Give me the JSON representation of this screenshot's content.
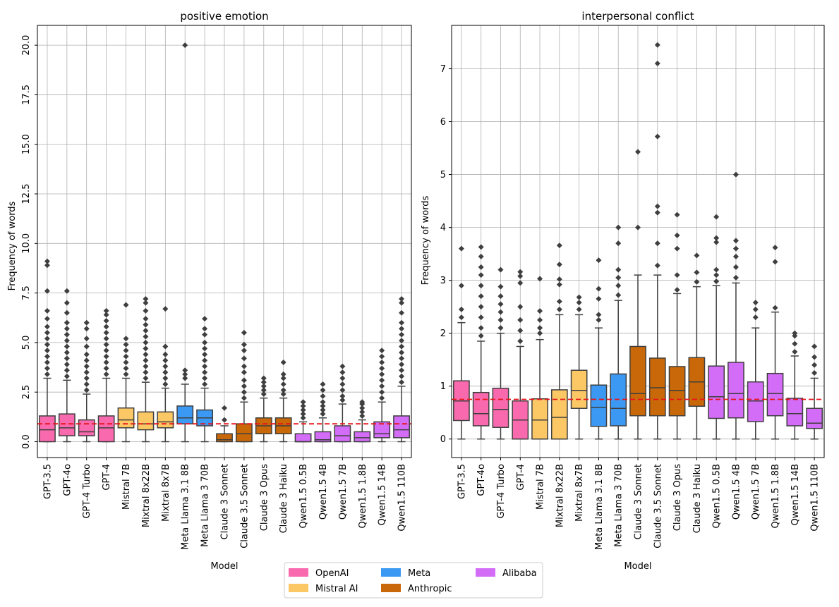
{
  "legend": {
    "items": [
      {
        "label": "OpenAI",
        "color": "#f86aad"
      },
      {
        "label": "Mistral AI",
        "color": "#fcc866"
      },
      {
        "label": "Meta",
        "color": "#3b99f3"
      },
      {
        "label": "Anthropic",
        "color": "#c86808"
      },
      {
        "label": "Alibaba",
        "color": "#d36cf6"
      }
    ]
  },
  "chart_data": [
    {
      "type": "box",
      "title": "positive emotion",
      "xlabel": "Model",
      "ylabel": "Frequency of words",
      "ylim": [
        -0.8,
        21.0
      ],
      "yticks": [
        0.0,
        2.5,
        5.0,
        7.5,
        10.0,
        12.5,
        15.0,
        17.5,
        20.0
      ],
      "ytick_labels": [
        "0.0",
        "2.5",
        "5.0",
        "7.5",
        "10.0",
        "12.5",
        "15.0",
        "17.5",
        "20.0"
      ],
      "grid": true,
      "reference_line": 0.9,
      "categories": [
        "GPT-3.5",
        "GPT-4o",
        "GPT-4 Turbo",
        "GPT-4",
        "Mistral 7B",
        "Mixtral 8x22B",
        "Mixtral 8x7B",
        "Meta Llama 3.1 8B",
        "Meta Llama 3 70B",
        "Claude 3 Sonnet",
        "Claude 3.5 Sonnet",
        "Claude 3 Opus",
        "Claude 3 Haiku",
        "Qwen1.5 0.5B",
        "Qwen1.5 4B",
        "Qwen1.5 7B",
        "Qwen1.5 1.8B",
        "Qwen1.5 14B",
        "Qwen1.5 110B"
      ],
      "providers": [
        "OpenAI",
        "OpenAI",
        "OpenAI",
        "OpenAI",
        "Mistral AI",
        "Mistral AI",
        "Mistral AI",
        "Meta",
        "Meta",
        "Anthropic",
        "Anthropic",
        "Anthropic",
        "Anthropic",
        "Alibaba",
        "Alibaba",
        "Alibaba",
        "Alibaba",
        "Alibaba",
        "Alibaba"
      ],
      "boxes": [
        {
          "low": 0,
          "q1": 0.0,
          "median": 0.6,
          "q3": 1.3,
          "high": 3.2,
          "outliers": [
            3.4,
            3.7,
            4.0,
            4.3,
            4.6,
            4.9,
            5.2,
            5.5,
            5.8,
            6.2,
            6.6,
            7.6,
            8.9,
            9.1
          ]
        },
        {
          "low": 0,
          "q1": 0.3,
          "median": 0.7,
          "q3": 1.4,
          "high": 3.1,
          "outliers": [
            3.3,
            3.6,
            3.9,
            4.2,
            4.5,
            4.8,
            5.1,
            5.4,
            5.7,
            6.0,
            6.5,
            7.0,
            7.6
          ]
        },
        {
          "low": 0,
          "q1": 0.3,
          "median": 0.5,
          "q3": 1.1,
          "high": 2.4,
          "outliers": [
            2.6,
            2.9,
            3.2,
            3.5,
            3.8,
            4.1,
            4.4,
            4.8,
            5.2,
            5.7,
            6.0
          ]
        },
        {
          "low": 0,
          "q1": 0.0,
          "median": 0.7,
          "q3": 1.3,
          "high": 3.2,
          "outliers": [
            3.4,
            3.7,
            4.0,
            4.3,
            4.6,
            4.9,
            5.2,
            5.5,
            5.8,
            6.1,
            6.4,
            6.6
          ]
        },
        {
          "low": 0,
          "q1": 0.7,
          "median": 1.1,
          "q3": 1.7,
          "high": 3.2,
          "outliers": [
            3.4,
            3.7,
            4.0,
            4.3,
            4.6,
            4.9,
            5.2,
            6.9
          ]
        },
        {
          "low": 0,
          "q1": 0.6,
          "median": 0.9,
          "q3": 1.5,
          "high": 3.0,
          "outliers": [
            3.2,
            3.5,
            3.8,
            4.1,
            4.4,
            4.7,
            5.0,
            5.3,
            5.6,
            5.9,
            6.2,
            6.6,
            7.0,
            7.2
          ]
        },
        {
          "low": 0,
          "q1": 0.7,
          "median": 1.0,
          "q3": 1.5,
          "high": 2.7,
          "outliers": [
            2.9,
            3.2,
            3.5,
            3.8,
            4.1,
            4.4,
            4.8,
            6.7
          ]
        },
        {
          "low": 0,
          "q1": 0.9,
          "median": 1.2,
          "q3": 1.8,
          "high": 2.9,
          "outliers": [
            3.2,
            3.4,
            3.6,
            20.0
          ]
        },
        {
          "low": 0,
          "q1": 0.8,
          "median": 1.2,
          "q3": 1.6,
          "high": 2.7,
          "outliers": [
            2.9,
            3.2,
            3.5,
            3.8,
            4.1,
            4.4,
            4.7,
            5.0,
            5.4,
            5.7,
            6.2
          ]
        },
        {
          "low": 0,
          "q1": 0.0,
          "median": 0.1,
          "q3": 0.4,
          "high": 0.8,
          "outliers": [
            1.1,
            1.7
          ]
        },
        {
          "low": 0,
          "q1": 0.0,
          "median": 0.4,
          "q3": 0.9,
          "high": 2.0,
          "outliers": [
            2.2,
            2.5,
            2.8,
            3.1,
            3.5,
            3.8,
            4.2,
            4.6,
            4.9,
            5.5
          ]
        },
        {
          "low": 0,
          "q1": 0.4,
          "median": 0.8,
          "q3": 1.2,
          "high": 2.2,
          "outliers": [
            2.4,
            2.6,
            2.8,
            3.0,
            3.2
          ]
        },
        {
          "low": 0,
          "q1": 0.4,
          "median": 0.8,
          "q3": 1.2,
          "high": 2.2,
          "outliers": [
            2.4,
            2.6,
            2.9,
            3.2,
            3.4,
            4.0
          ]
        },
        {
          "low": 0,
          "q1": 0.0,
          "median": 0.0,
          "q3": 0.4,
          "high": 1.0,
          "outliers": [
            1.2,
            1.4,
            1.6,
            1.8,
            2.0
          ]
        },
        {
          "low": 0,
          "q1": 0.0,
          "median": 0.1,
          "q3": 0.5,
          "high": 1.2,
          "outliers": [
            1.4,
            1.6,
            1.8,
            2.0,
            2.3,
            2.6,
            2.9
          ]
        },
        {
          "low": 0,
          "q1": 0.0,
          "median": 0.3,
          "q3": 0.8,
          "high": 1.9,
          "outliers": [
            2.1,
            2.3,
            2.6,
            2.9,
            3.2,
            3.5,
            3.8
          ]
        },
        {
          "low": 0,
          "q1": 0.0,
          "median": 0.2,
          "q3": 0.5,
          "high": 1.1,
          "outliers": [
            1.3,
            1.5,
            1.7,
            1.9,
            2.0
          ]
        },
        {
          "low": 0,
          "q1": 0.2,
          "median": 0.4,
          "q3": 1.0,
          "high": 2.0,
          "outliers": [
            2.2,
            2.5,
            2.8,
            3.1,
            3.4,
            3.7,
            4.0,
            4.3,
            4.6
          ]
        },
        {
          "low": 0,
          "q1": 0.2,
          "median": 0.6,
          "q3": 1.3,
          "high": 2.8,
          "outliers": [
            3.0,
            3.3,
            3.6,
            3.9,
            4.2,
            4.5,
            4.8,
            5.1,
            5.4,
            5.7,
            6.0,
            6.5,
            7.0,
            7.2
          ]
        }
      ]
    },
    {
      "type": "box",
      "title": "interpersonal conflict",
      "xlabel": "Model",
      "ylabel": "Frequency of words",
      "ylim": [
        -0.35,
        7.82
      ],
      "yticks": [
        0,
        1,
        2,
        3,
        4,
        5,
        6,
        7
      ],
      "ytick_labels": [
        "0",
        "1",
        "2",
        "3",
        "4",
        "5",
        "6",
        "7"
      ],
      "grid": true,
      "reference_line": 0.75,
      "categories": [
        "GPT-3.5",
        "GPT-4o",
        "GPT-4 Turbo",
        "GPT-4",
        "Mistral 7B",
        "Mixtral 8x22B",
        "Mixtral 8x7B",
        "Meta Llama 3.1 8B",
        "Meta Llama 3 70B",
        "Claude 3 Sonnet",
        "Claude 3.5 Sonnet",
        "Claude 3 Opus",
        "Claude 3 Haiku",
        "Qwen1.5 0.5B",
        "Qwen1.5 4B",
        "Qwen1.5 7B",
        "Qwen1.5 1.8B",
        "Qwen1.5 14B",
        "Qwen1.5 110B"
      ],
      "providers": [
        "OpenAI",
        "OpenAI",
        "OpenAI",
        "OpenAI",
        "Mistral AI",
        "Mistral AI",
        "Mistral AI",
        "Meta",
        "Meta",
        "Anthropic",
        "Anthropic",
        "Anthropic",
        "Anthropic",
        "Alibaba",
        "Alibaba",
        "Alibaba",
        "Alibaba",
        "Alibaba",
        "Alibaba"
      ],
      "boxes": [
        {
          "low": 0,
          "q1": 0.35,
          "median": 0.72,
          "q3": 1.1,
          "high": 2.2,
          "outliers": [
            2.3,
            2.45,
            2.9,
            3.6
          ]
        },
        {
          "low": 0,
          "q1": 0.25,
          "median": 0.48,
          "q3": 0.88,
          "high": 1.85,
          "outliers": [
            1.95,
            2.1,
            2.3,
            2.5,
            2.7,
            2.9,
            3.1,
            3.25,
            3.45,
            3.63
          ]
        },
        {
          "low": 0,
          "q1": 0.22,
          "median": 0.56,
          "q3": 0.96,
          "high": 2.0,
          "outliers": [
            2.1,
            2.25,
            2.4,
            2.55,
            2.7,
            2.88,
            3.2
          ]
        },
        {
          "low": 0,
          "q1": 0.0,
          "median": 0.36,
          "q3": 0.72,
          "high": 1.75,
          "outliers": [
            1.85,
            2.05,
            2.25,
            2.5,
            2.95,
            3.08,
            3.16
          ]
        },
        {
          "low": 0,
          "q1": 0.0,
          "median": 0.36,
          "q3": 0.76,
          "high": 1.88,
          "outliers": [
            2.0,
            2.1,
            2.25,
            2.42,
            3.03
          ]
        },
        {
          "low": 0,
          "q1": 0.0,
          "median": 0.41,
          "q3": 0.93,
          "high": 2.35,
          "outliers": [
            2.45,
            2.6,
            2.92,
            3.02,
            3.3,
            3.66
          ]
        },
        {
          "low": 0,
          "q1": 0.58,
          "median": 0.92,
          "q3": 1.3,
          "high": 2.35,
          "outliers": [
            2.45,
            2.58,
            2.68
          ]
        },
        {
          "low": 0,
          "q1": 0.24,
          "median": 0.6,
          "q3": 1.02,
          "high": 2.1,
          "outliers": [
            2.25,
            2.35,
            2.65,
            2.84,
            3.38
          ]
        },
        {
          "low": 0,
          "q1": 0.25,
          "median": 0.58,
          "q3": 1.23,
          "high": 2.62,
          "outliers": [
            2.72,
            2.9,
            3.05,
            3.2,
            3.7,
            4.0
          ]
        },
        {
          "low": 0,
          "q1": 0.44,
          "median": 0.86,
          "q3": 1.75,
          "high": 3.1,
          "outliers": [
            4.0,
            5.43
          ]
        },
        {
          "low": 0,
          "q1": 0.44,
          "median": 0.97,
          "q3": 1.53,
          "high": 3.1,
          "outliers": [
            3.28,
            3.7,
            4.28,
            4.4,
            5.72,
            7.1,
            7.45
          ]
        },
        {
          "low": 0,
          "q1": 0.44,
          "median": 0.92,
          "q3": 1.37,
          "high": 2.75,
          "outliers": [
            2.82,
            3.1,
            3.6,
            3.85,
            4.24
          ]
        },
        {
          "low": 0,
          "q1": 0.62,
          "median": 1.08,
          "q3": 1.54,
          "high": 2.88,
          "outliers": [
            2.97,
            3.15,
            3.47
          ]
        },
        {
          "low": 0,
          "q1": 0.39,
          "median": 0.8,
          "q3": 1.38,
          "high": 2.9,
          "outliers": [
            2.98,
            3.1,
            3.2,
            3.72,
            3.8,
            4.2
          ]
        },
        {
          "low": 0,
          "q1": 0.4,
          "median": 0.86,
          "q3": 1.45,
          "high": 2.95,
          "outliers": [
            3.05,
            3.25,
            3.45,
            3.6,
            3.75,
            5.0
          ]
        },
        {
          "low": 0,
          "q1": 0.33,
          "median": 0.72,
          "q3": 1.08,
          "high": 2.1,
          "outliers": [
            2.3,
            2.45,
            2.58
          ]
        },
        {
          "low": 0,
          "q1": 0.44,
          "median": 0.86,
          "q3": 1.24,
          "high": 2.4,
          "outliers": [
            2.48,
            3.35,
            3.62
          ]
        },
        {
          "low": 0,
          "q1": 0.25,
          "median": 0.48,
          "q3": 0.77,
          "high": 1.57,
          "outliers": [
            1.65,
            1.8,
            1.95,
            2.0
          ]
        },
        {
          "low": 0,
          "q1": 0.2,
          "median": 0.3,
          "q3": 0.58,
          "high": 1.15,
          "outliers": [
            1.25,
            1.4,
            1.55,
            1.75
          ]
        }
      ]
    }
  ]
}
